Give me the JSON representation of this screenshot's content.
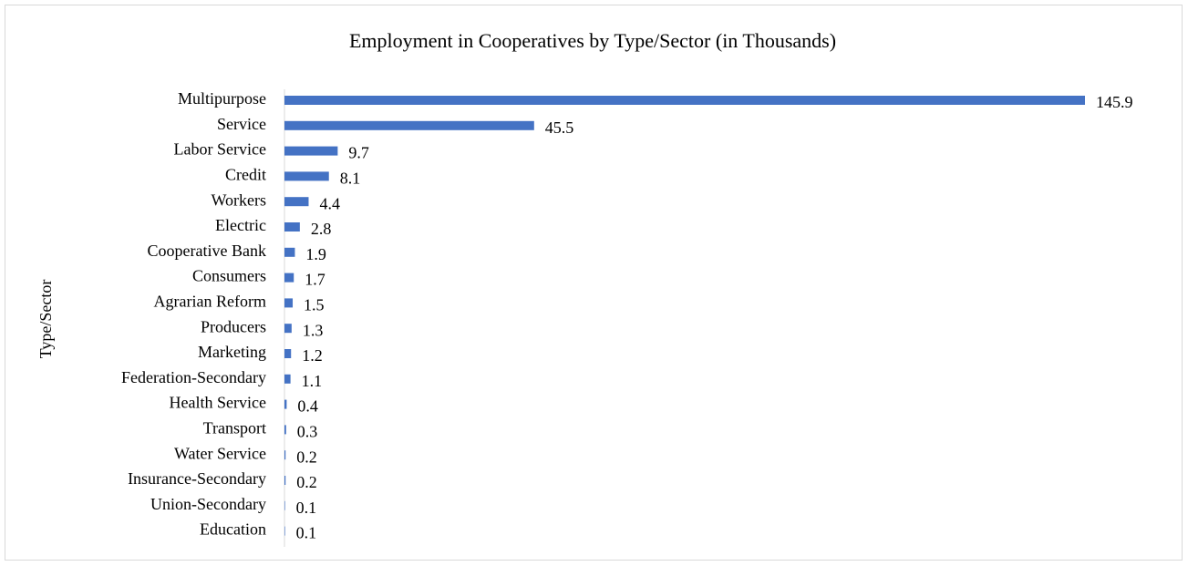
{
  "chart_data": {
    "type": "barh",
    "title": "Employment in Cooperatives by Type/Sector (in Thousands)",
    "y_label": "Type/Sector",
    "categories": [
      "Multipurpose",
      "Service",
      "Labor Service",
      "Credit",
      "Workers",
      "Electric",
      "Cooperative Bank",
      "Consumers",
      "Agrarian Reform",
      "Producers",
      "Marketing",
      "Federation-Secondary",
      "Health Service",
      "Transport",
      "Water Service",
      "Insurance-Secondary",
      "Union-Secondary",
      "Education"
    ],
    "values": [
      145.9,
      45.5,
      9.7,
      8.1,
      4.4,
      2.8,
      1.9,
      1.7,
      1.5,
      1.3,
      1.2,
      1.1,
      0.4,
      0.3,
      0.2,
      0.2,
      0.1,
      0.1
    ],
    "color": "#4472c4"
  }
}
